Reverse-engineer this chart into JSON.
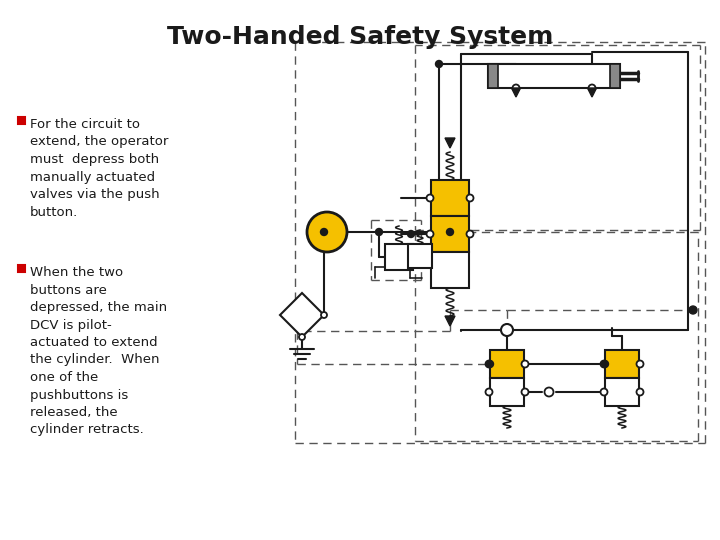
{
  "title": "Two-Handed Safety System",
  "title_fontsize": 18,
  "title_fontweight": "bold",
  "background_color": "#ffffff",
  "bullet_color": "#cc0000",
  "text_fontsize": 9.5,
  "bullet1_text": "For the circuit to\nextend, the operator\nmust  depress both\nmanually actuated\nvalves via the push\nbutton.",
  "bullet2_text": "When the two\nbuttons are\ndepressed, the main\nDCV is pilot-\nactuated to extend\nthe cylinder.  When\none of the\npushbuttons is\nreleased, the\ncylinder retracts.",
  "yellow": "#f5c000",
  "black": "#1a1a1a",
  "gray": "#888888",
  "dashed_color": "#555555"
}
